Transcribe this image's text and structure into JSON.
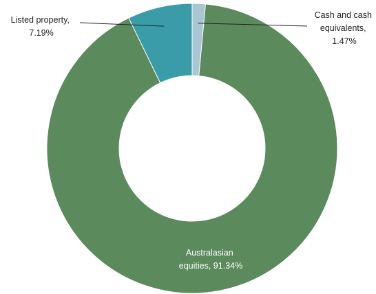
{
  "chart_data": {
    "type": "pie",
    "donut": true,
    "start": "top, clockwise",
    "slices": [
      {
        "label_lines": [
          "Cash and cash",
          "equivalents,",
          "1.47%"
        ],
        "value": 1.47,
        "color": "#a9c6d3"
      },
      {
        "label_lines": [
          "Australasian",
          "equities, 91.34%"
        ],
        "value": 91.34,
        "color": "#5b8a5d"
      },
      {
        "label_lines": [
          "Listed property,",
          "7.19%"
        ],
        "value": 7.19,
        "color": "#3a9ca8"
      }
    ]
  }
}
